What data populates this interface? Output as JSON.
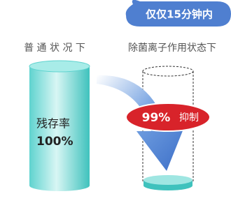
{
  "bubble": {
    "text": "仅仅15分钟内"
  },
  "left": {
    "caption": "普 通 状 况 下",
    "label": "残存率",
    "value": "100%"
  },
  "right": {
    "caption": "除菌离子作用状态下",
    "badge": {
      "value": "99%",
      "text": "抑制"
    }
  }
}
